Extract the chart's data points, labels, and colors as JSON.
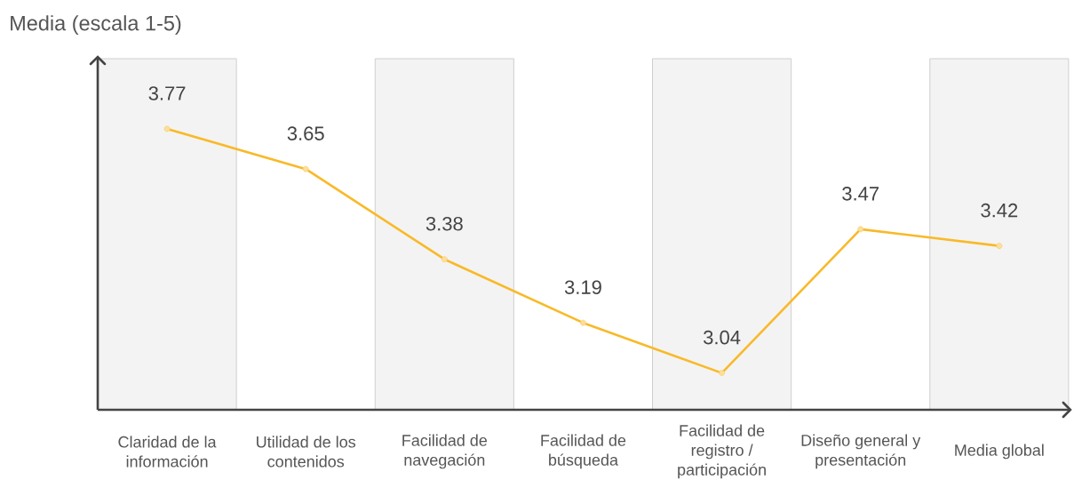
{
  "chart_data": {
    "type": "line",
    "ylabel": "Media (escala 1-5)",
    "categories": [
      "Claridad de la información",
      "Utilidad de los contenidos",
      "Facilidad de navegación",
      "Facilidad de búsqueda",
      "Facilidad de registro / participación",
      "Diseño general y presentación",
      "Media global"
    ],
    "values": [
      3.77,
      3.65,
      3.38,
      3.19,
      3.04,
      3.47,
      3.42
    ],
    "color": "#f9b928",
    "ylim": [
      2.93,
      3.98
    ],
    "tick_labels": "x",
    "data_labels": true,
    "marker": "circle",
    "line_style": "solid",
    "bands": [
      {
        "axis": "x",
        "from": "Claridad de la información",
        "to": "Claridad de la información",
        "color": "#f3f3f3"
      },
      {
        "axis": "x",
        "from": "Facilidad de navegación",
        "to": "Facilidad de navegación",
        "color": "#f3f3f3"
      },
      {
        "axis": "x",
        "from": "Facilidad de registro / participación",
        "to": "Facilidad de registro / participación",
        "color": "#f3f3f3"
      },
      {
        "axis": "x",
        "from": "Media global",
        "to": "Media global",
        "color": "#f3f3f3"
      }
    ]
  }
}
